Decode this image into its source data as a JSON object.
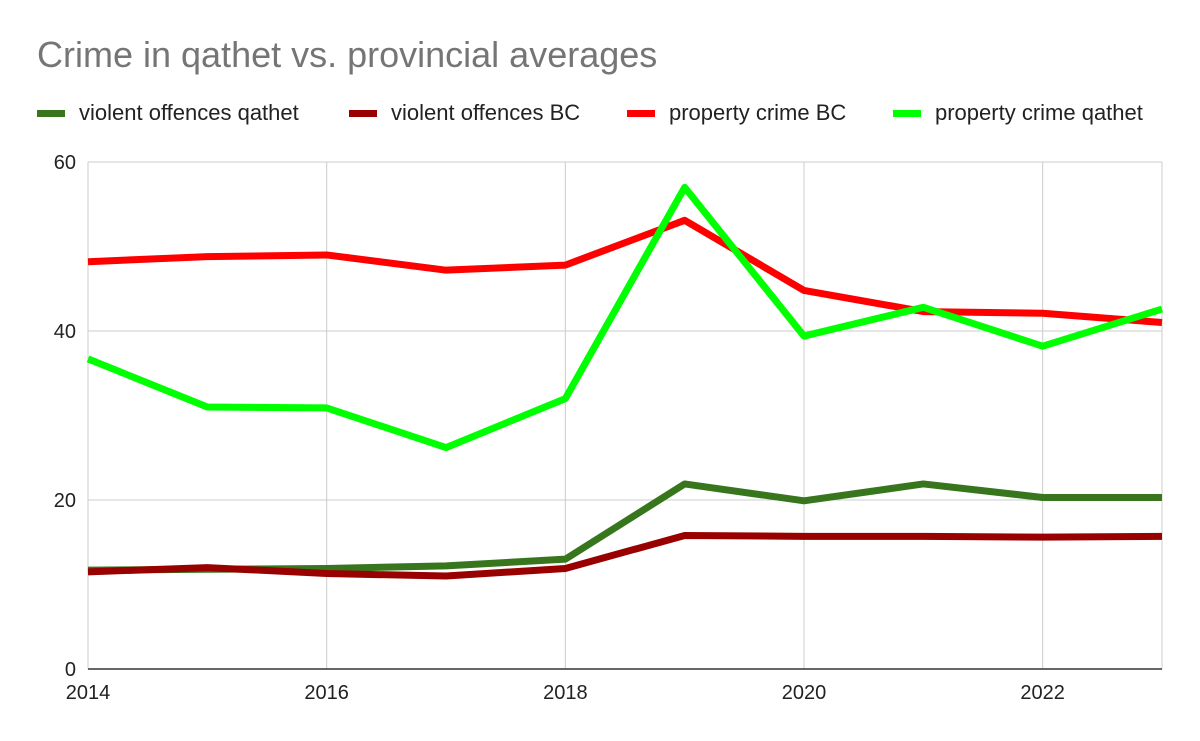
{
  "chart_data": {
    "type": "line",
    "title": "Crime in qathet vs. provincial averages",
    "xlabel": "",
    "ylabel": "",
    "x": [
      2014,
      2015,
      2016,
      2017,
      2018,
      2019,
      2020,
      2021,
      2022,
      2023
    ],
    "x_ticks": [
      "2014",
      "2016",
      "2018",
      "2020",
      "2022"
    ],
    "y_ticks": [
      "0",
      "20",
      "40",
      "60"
    ],
    "ylim": [
      0,
      60
    ],
    "xlim": [
      2014,
      2023
    ],
    "grid": true,
    "legend_position": "top",
    "series": [
      {
        "name": "violent offences qathet",
        "color": "#38761d",
        "values": [
          11.7,
          11.8,
          11.9,
          12.2,
          13.0,
          21.9,
          19.9,
          21.9,
          20.3,
          20.3
        ]
      },
      {
        "name": "violent offences BC",
        "color": "#990000",
        "values": [
          11.5,
          12.0,
          11.3,
          11.0,
          11.9,
          15.8,
          15.7,
          15.7,
          15.6,
          15.7
        ]
      },
      {
        "name": "property crime BC",
        "color": "#ff0000",
        "values": [
          48.2,
          48.8,
          49.0,
          47.2,
          47.8,
          53.1,
          44.8,
          42.3,
          42.1,
          41.0
        ]
      },
      {
        "name": "property crime qathet",
        "color": "#00ff00",
        "values": [
          36.7,
          31.0,
          30.9,
          26.2,
          32.0,
          57.0,
          39.4,
          42.8,
          38.2,
          42.6
        ]
      }
    ]
  }
}
